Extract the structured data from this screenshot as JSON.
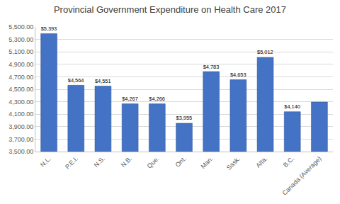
{
  "chart_data": {
    "type": "bar",
    "title": "Provincial Government Expenditure on Health Care 2017",
    "categories": [
      "N.L.",
      "P.E.I.",
      "N.S.",
      "N.B.",
      "Que.",
      "Ont.",
      "Man.",
      "Sask.",
      "Alta.",
      "B.C.",
      "Canada (Average)"
    ],
    "values": [
      5393,
      4564,
      4551,
      4267,
      4266,
      3955,
      4783,
      4653,
      5012,
      4140,
      4295
    ],
    "value_labels": [
      "$5,393",
      "$4,564",
      "$4,551",
      "$4,267",
      "$4,266",
      "$3,955",
      "$4,783",
      "$4,653",
      "$5,012",
      "$4,140",
      null
    ],
    "data_labels": true,
    "color": "#4472c4",
    "ylim": [
      3500,
      5500
    ],
    "yticks": [
      {
        "value": 3500,
        "label": "3,500.00"
      },
      {
        "value": 3700,
        "label": "3,700.00"
      },
      {
        "value": 3900,
        "label": "3,900.00"
      },
      {
        "value": 4100,
        "label": "4,100.00"
      },
      {
        "value": 4300,
        "label": "4,300.00"
      },
      {
        "value": 4500,
        "label": "4,500.00"
      },
      {
        "value": 4700,
        "label": "4,700.00"
      },
      {
        "value": 4900,
        "label": "4,900.00"
      },
      {
        "value": 5100,
        "label": "5,100.00"
      },
      {
        "value": 5300,
        "label": "5,300.00"
      },
      {
        "value": 5500,
        "label": "5,500.00"
      }
    ],
    "grid": true
  }
}
